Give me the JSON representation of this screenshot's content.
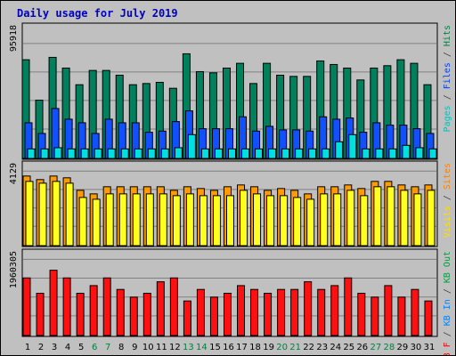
{
  "chart_data": {
    "type": "bar",
    "title": "Daily usage for July 2019",
    "categories": [
      "1",
      "2",
      "3",
      "4",
      "5",
      "6",
      "7",
      "8",
      "9",
      "10",
      "11",
      "12",
      "13",
      "14",
      "15",
      "16",
      "17",
      "18",
      "19",
      "20",
      "21",
      "22",
      "23",
      "24",
      "25",
      "26",
      "27",
      "28",
      "29",
      "30",
      "31"
    ],
    "weekend_days": [
      "6",
      "7",
      "13",
      "14",
      "20",
      "21",
      "27",
      "28"
    ],
    "panels": [
      {
        "id": "hits",
        "ymax_label": "95918",
        "ymax": 95918,
        "legend": [
          {
            "text": "Pages",
            "color": "#00c0c0"
          },
          {
            "text": " / ",
            "color": "#404040"
          },
          {
            "text": "Files",
            "color": "#0040ff"
          },
          {
            "text": " / ",
            "color": "#404040"
          },
          {
            "text": "Hits",
            "color": "#008040"
          }
        ],
        "series": [
          {
            "name": "Hits",
            "color": "#00805c",
            "values": [
              83000,
              49000,
              85000,
              76000,
              62000,
              74000,
              74000,
              70000,
              62000,
              63000,
              64000,
              59000,
              88000,
              73000,
              72000,
              76000,
              80000,
              63000,
              80000,
              70000,
              69000,
              69000,
              82000,
              79000,
              76000,
              66000,
              76000,
              78000,
              83000,
              80000,
              62000
            ]
          },
          {
            "name": "Files",
            "color": "#1050ff",
            "values": [
              30000,
              21000,
              42000,
              33000,
              30000,
              21000,
              33000,
              30000,
              30000,
              22000,
              23000,
              31000,
              40000,
              25000,
              25000,
              25000,
              35000,
              23000,
              27000,
              24000,
              24000,
              23000,
              35000,
              33000,
              34000,
              22000,
              30000,
              28000,
              28000,
              25000,
              21000
            ]
          },
          {
            "name": "Pages",
            "color": "#00e0e0",
            "values": [
              8000,
              8000,
              9000,
              8000,
              8000,
              8000,
              8000,
              8000,
              8000,
              8000,
              8000,
              9000,
              20000,
              8000,
              8000,
              8000,
              8000,
              8000,
              8000,
              8000,
              8000,
              8000,
              8000,
              14000,
              20000,
              8000,
              8000,
              8000,
              11000,
              9000,
              8000
            ]
          }
        ]
      },
      {
        "id": "visits",
        "ymax_label": "4129",
        "ymax": 4129,
        "legend": [
          {
            "text": "Visits",
            "color": "#ffdd00"
          },
          {
            "text": " / ",
            "color": "#404040"
          },
          {
            "text": "Sites",
            "color": "#ff8000"
          }
        ],
        "series": [
          {
            "name": "Sites",
            "color": "#ff9a00",
            "values": [
              3900,
              3700,
              3900,
              3800,
              3100,
              2900,
              3300,
              3300,
              3300,
              3300,
              3300,
              3100,
              3300,
              3200,
              3100,
              3300,
              3400,
              3300,
              3100,
              3200,
              3100,
              2900,
              3300,
              3300,
              3400,
              3200,
              3600,
              3600,
              3400,
              3300,
              3400
            ]
          },
          {
            "name": "Visits",
            "color": "#ffff20",
            "values": [
              3600,
              3500,
              3600,
              3500,
              2700,
              2600,
              2900,
              2900,
              2900,
              2900,
              2900,
              2800,
              2900,
              2800,
              2800,
              2800,
              3100,
              2900,
              2800,
              2800,
              2700,
              2600,
              2900,
              2900,
              3100,
              2800,
              3300,
              3300,
              3100,
              2900,
              3100
            ]
          }
        ]
      },
      {
        "id": "kbytes",
        "ymax_label": "1960305",
        "ymax": 1960305,
        "legend": [
          {
            "text": "KB F",
            "color": "#ff0000"
          },
          {
            "text": " / ",
            "color": "#404040"
          },
          {
            "text": "KB In",
            "color": "#0080ff"
          },
          {
            "text": " / ",
            "color": "#404040"
          },
          {
            "text": "KB Out",
            "color": "#00a040"
          }
        ],
        "series": [
          {
            "name": "KB F",
            "color": "#ff1010",
            "values": [
              1500000,
              1100000,
              1700000,
              1500000,
              1100000,
              1300000,
              1500000,
              1200000,
              1000000,
              1100000,
              1400000,
              1500000,
              900000,
              1200000,
              1000000,
              1100000,
              1300000,
              1200000,
              1100000,
              1200000,
              1200000,
              1400000,
              1200000,
              1300000,
              1500000,
              1100000,
              1000000,
              1300000,
              1000000,
              1200000,
              900000
            ]
          }
        ]
      }
    ],
    "grid": true
  }
}
